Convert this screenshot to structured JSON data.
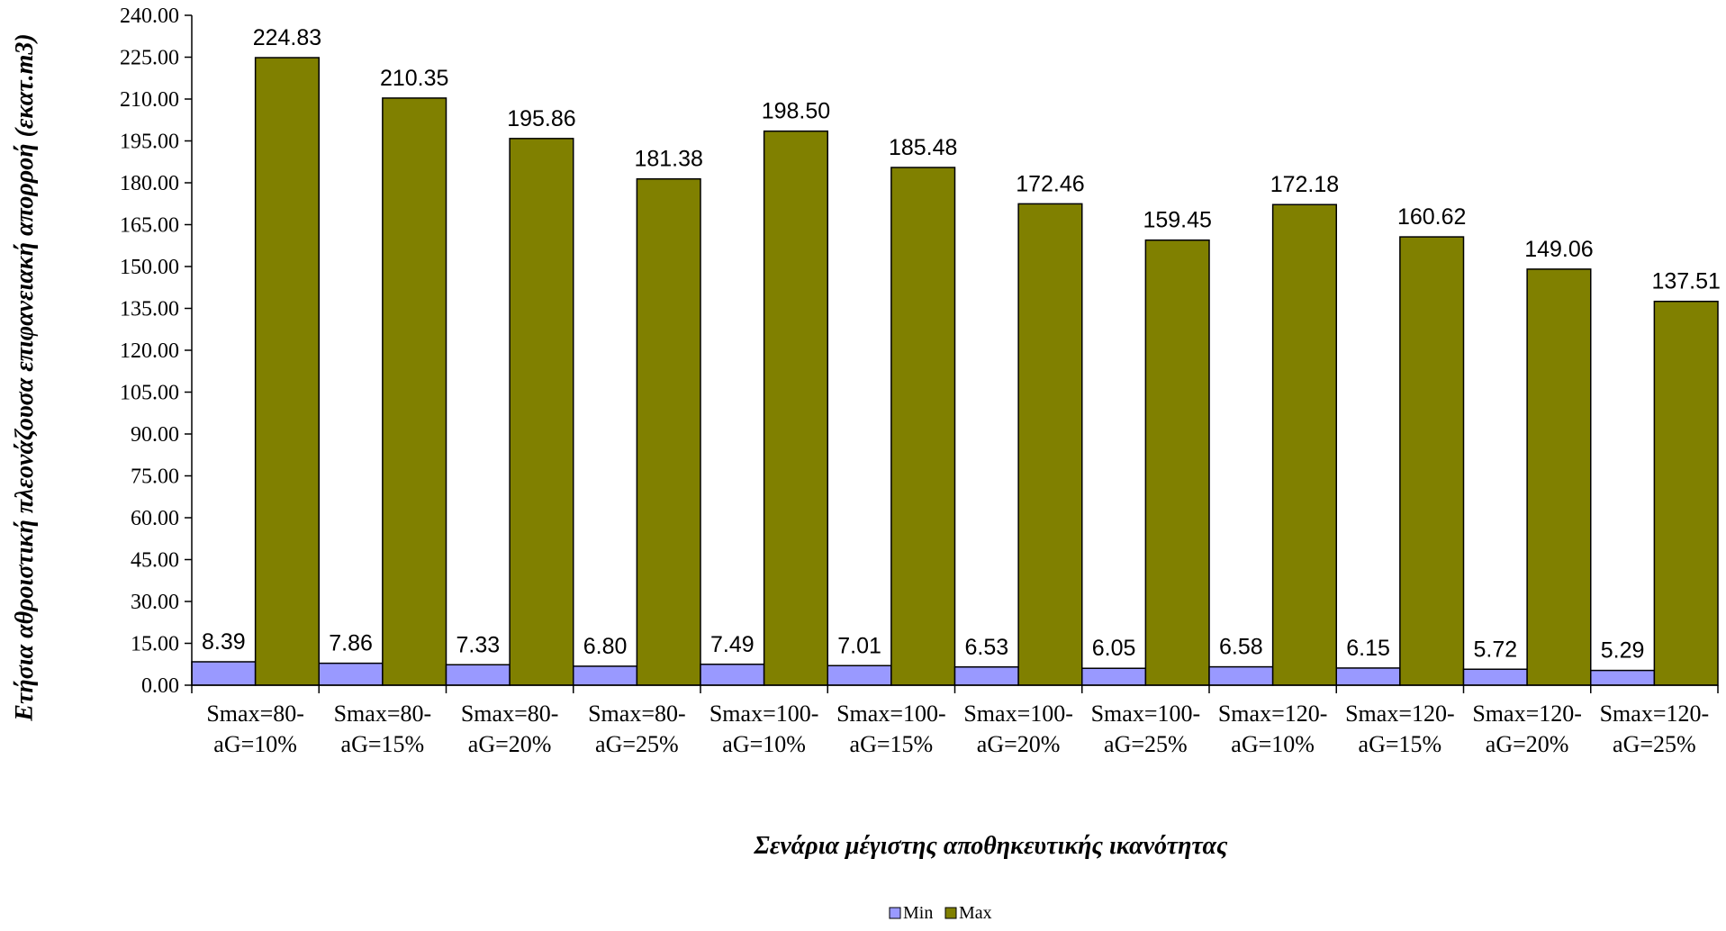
{
  "chart_data": {
    "type": "bar",
    "xlabel": "Σενάρια μέγιστης αποθηκευτικής ικανότητας",
    "ylabel": "Ετήσια αθροιστική πλεονάζουσα επιφανειακή απορροή (εκατ.m3)",
    "ylim": [
      0,
      240
    ],
    "ytick_step": 15,
    "ytick_decimals": 2,
    "categories": [
      [
        "Smax=80-",
        "aG=10%"
      ],
      [
        "Smax=80-",
        "aG=15%"
      ],
      [
        "Smax=80-",
        "aG=20%"
      ],
      [
        "Smax=80-",
        "aG=25%"
      ],
      [
        "Smax=100-",
        "aG=10%"
      ],
      [
        "Smax=100-",
        "aG=15%"
      ],
      [
        "Smax=100-",
        "aG=20%"
      ],
      [
        "Smax=100-",
        "aG=25%"
      ],
      [
        "Smax=120-",
        "aG=10%"
      ],
      [
        "Smax=120-",
        "aG=15%"
      ],
      [
        "Smax=120-",
        "aG=20%"
      ],
      [
        "Smax=120-",
        "aG=25%"
      ]
    ],
    "series": [
      {
        "name": "Min",
        "color": "#9999ff",
        "values": [
          8.39,
          7.86,
          7.33,
          6.8,
          7.49,
          7.01,
          6.53,
          6.05,
          6.58,
          6.15,
          5.72,
          5.29
        ]
      },
      {
        "name": "Max",
        "color": "#808000",
        "values": [
          224.83,
          210.35,
          195.86,
          181.38,
          198.5,
          185.48,
          172.46,
          159.45,
          172.18,
          160.62,
          149.06,
          137.51
        ]
      }
    ],
    "grid": false,
    "legend": "bottom-center",
    "data_labels": true
  }
}
